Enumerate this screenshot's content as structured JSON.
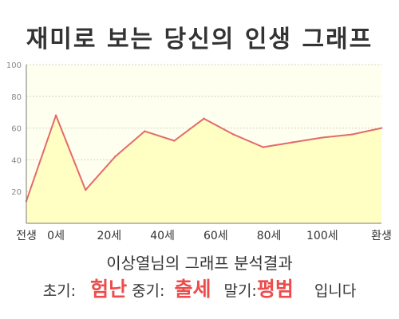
{
  "title": "재미로 보는 당신의 인생 그래프",
  "chart_data": {
    "type": "area",
    "x": [
      0,
      1,
      2,
      3,
      4,
      5,
      6,
      7,
      8,
      9,
      10,
      11,
      12
    ],
    "values": [
      14,
      68,
      21,
      42,
      58,
      52,
      66,
      56,
      48,
      51,
      54,
      56,
      60
    ],
    "xticks": [
      {
        "pos": 0,
        "label": "전생"
      },
      {
        "pos": 1,
        "label": "0세"
      },
      {
        "pos": 2.8,
        "label": "20세"
      },
      {
        "pos": 4.6,
        "label": "40세"
      },
      {
        "pos": 6.4,
        "label": "60세"
      },
      {
        "pos": 8.2,
        "label": "80세"
      },
      {
        "pos": 10,
        "label": "100세"
      },
      {
        "pos": 12,
        "label": "환생"
      }
    ],
    "yticks": [
      20,
      40,
      60,
      80,
      100
    ],
    "ylim": [
      0,
      100
    ],
    "grid": true,
    "colors": {
      "fill": "#ffffc4",
      "line": "#e46a6a",
      "background": "#fffff0",
      "grid": "#d4d4c4",
      "axis": "#7a7a7a",
      "tick_label": "#888888"
    }
  },
  "summary": "이상열님의 그래프 분석결과",
  "verdict": {
    "early_label": "초기:",
    "early_value": "험난",
    "middle_label": "중기:",
    "middle_value": "출세",
    "late_label": "말기:",
    "late_value": "평범",
    "ending": "입니다"
  }
}
